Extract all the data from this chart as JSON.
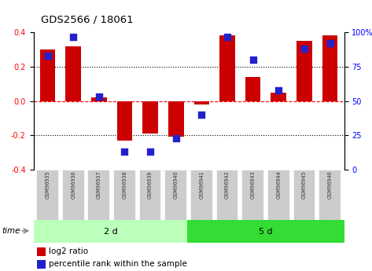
{
  "title": "GDS2566 / 18061",
  "samples": [
    "GSM96935",
    "GSM96936",
    "GSM96937",
    "GSM96938",
    "GSM96939",
    "GSM96940",
    "GSM96941",
    "GSM96942",
    "GSM96943",
    "GSM96944",
    "GSM96945",
    "GSM96946"
  ],
  "log2_ratio": [
    0.3,
    0.32,
    0.02,
    -0.23,
    -0.19,
    -0.21,
    -0.02,
    0.385,
    0.14,
    0.05,
    0.35,
    0.385
  ],
  "percentile_rank": [
    83,
    97,
    53,
    13,
    13,
    23,
    40,
    97,
    80,
    58,
    88,
    92
  ],
  "group1_label": "2 d",
  "group2_label": "5 d",
  "group1_count": 6,
  "group2_count": 6,
  "bar_color": "#cc0000",
  "dot_color": "#2222cc",
  "bg_color_1": "#bbffbb",
  "bg_color_2": "#33dd33",
  "ylim_left": [
    -0.4,
    0.4
  ],
  "ylim_right": [
    0,
    100
  ],
  "yticks_left": [
    -0.4,
    -0.2,
    0.0,
    0.2,
    0.4
  ],
  "yticks_right": [
    0,
    25,
    50,
    75,
    100
  ],
  "ytick_labels_right": [
    "0",
    "25",
    "50",
    "75",
    "100%"
  ],
  "dot_size": 28,
  "bar_width": 0.6
}
